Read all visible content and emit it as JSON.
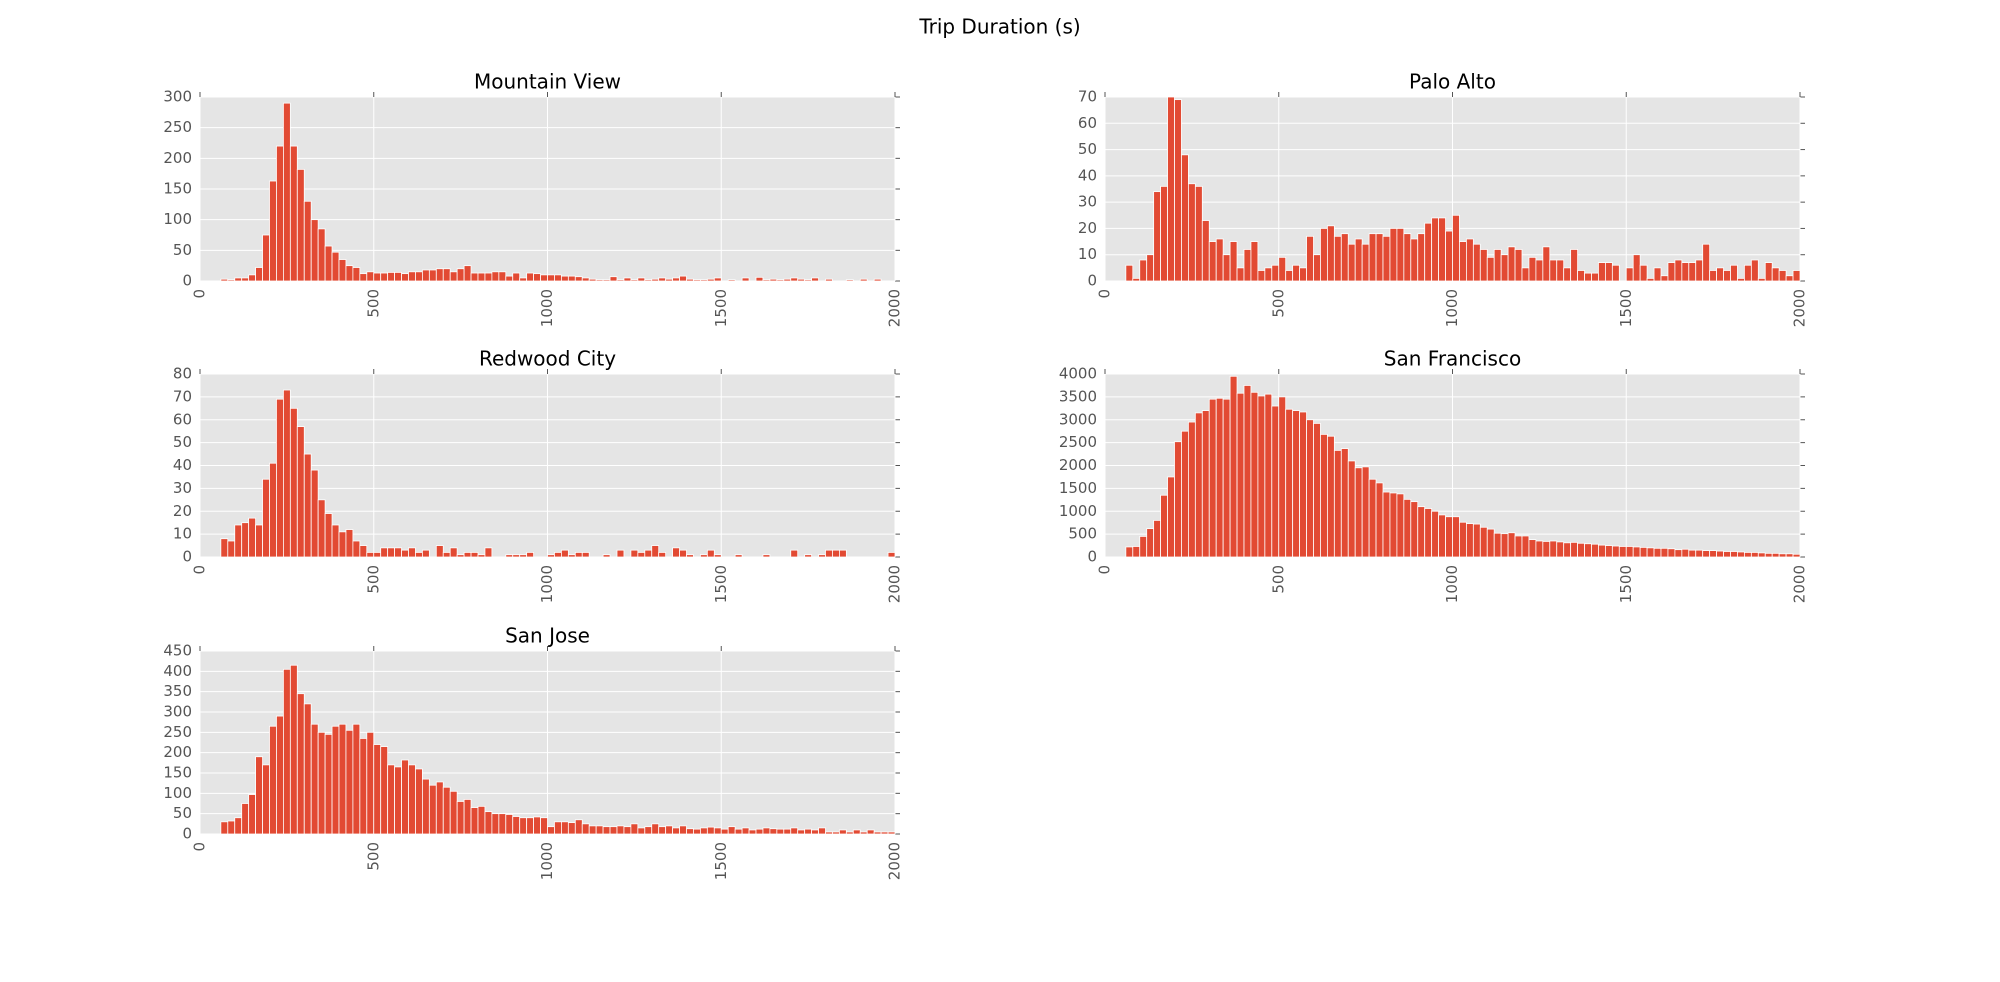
{
  "title": "Trip Duration (s)",
  "chart_data": [
    {
      "type": "histogram",
      "title": "Mountain View",
      "color": "#e24a33",
      "grid": true,
      "bins": [
        0,
        20,
        40,
        60,
        80,
        100,
        120,
        140,
        160,
        180,
        200,
        220,
        240,
        260,
        280,
        300,
        320,
        340,
        360,
        380,
        400,
        420,
        440,
        460,
        480,
        500,
        520,
        540,
        560,
        580,
        600,
        620,
        640,
        660,
        680,
        700,
        720,
        740,
        760,
        780,
        800,
        820,
        840,
        860,
        880,
        900,
        920,
        940,
        960,
        980,
        1000,
        1020,
        1040,
        1060,
        1080,
        1100,
        1120,
        1140,
        1160,
        1180,
        1200,
        1220,
        1240,
        1260,
        1280,
        1300,
        1320,
        1340,
        1360,
        1380,
        1400,
        1420,
        1440,
        1460,
        1480,
        1500,
        1520,
        1540,
        1560,
        1580,
        1600,
        1620,
        1640,
        1660,
        1680,
        1700,
        1720,
        1740,
        1760,
        1780,
        1800,
        1820,
        1840,
        1860,
        1880,
        1900,
        1920,
        1940,
        1960,
        1980,
        2000
      ],
      "values": [
        0,
        0,
        0,
        3,
        2,
        5,
        5,
        10,
        22,
        75,
        163,
        220,
        290,
        220,
        182,
        130,
        100,
        85,
        57,
        47,
        35,
        25,
        22,
        12,
        15,
        13,
        13,
        14,
        14,
        12,
        15,
        15,
        18,
        18,
        20,
        20,
        15,
        20,
        25,
        13,
        13,
        13,
        15,
        15,
        8,
        13,
        5,
        13,
        12,
        10,
        10,
        10,
        8,
        8,
        7,
        5,
        3,
        2,
        2,
        7,
        2,
        5,
        2,
        5,
        2,
        3,
        5,
        3,
        5,
        8,
        3,
        2,
        2,
        3,
        5,
        0,
        2,
        0,
        5,
        0,
        6,
        2,
        3,
        2,
        3,
        5,
        3,
        2,
        5,
        0,
        3,
        0,
        0,
        2,
        0,
        3,
        0,
        3,
        0,
        0
      ],
      "xlim": [
        0,
        2000
      ],
      "xticks": [
        0,
        500,
        1000,
        1500,
        2000
      ],
      "ylim": [
        0,
        300
      ],
      "yticks": [
        0,
        50,
        100,
        150,
        200,
        250,
        300
      ]
    },
    {
      "type": "histogram",
      "title": "Palo Alto",
      "color": "#e24a33",
      "grid": true,
      "bins": [
        0,
        20,
        40,
        60,
        80,
        100,
        120,
        140,
        160,
        180,
        200,
        220,
        240,
        260,
        280,
        300,
        320,
        340,
        360,
        380,
        400,
        420,
        440,
        460,
        480,
        500,
        520,
        540,
        560,
        580,
        600,
        620,
        640,
        660,
        680,
        700,
        720,
        740,
        760,
        780,
        800,
        820,
        840,
        860,
        880,
        900,
        920,
        940,
        960,
        980,
        1000,
        1020,
        1040,
        1060,
        1080,
        1100,
        1120,
        1140,
        1160,
        1180,
        1200,
        1220,
        1240,
        1260,
        1280,
        1300,
        1320,
        1340,
        1360,
        1380,
        1400,
        1420,
        1440,
        1460,
        1480,
        1500,
        1520,
        1540,
        1560,
        1580,
        1600,
        1620,
        1640,
        1660,
        1680,
        1700,
        1720,
        1740,
        1760,
        1780,
        1800,
        1820,
        1840,
        1860,
        1880,
        1900,
        1920,
        1940,
        1960,
        1980,
        2000
      ],
      "values": [
        0,
        0,
        0,
        6,
        1,
        8,
        10,
        34,
        36,
        70,
        69,
        48,
        37,
        36,
        23,
        15,
        16,
        10,
        15,
        5,
        12,
        15,
        4,
        5,
        6,
        9,
        4,
        6,
        5,
        17,
        10,
        20,
        21,
        17,
        18,
        14,
        16,
        14,
        18,
        18,
        17,
        20,
        20,
        18,
        16,
        18,
        22,
        24,
        24,
        19,
        25,
        15,
        16,
        14,
        12,
        9,
        12,
        10,
        13,
        12,
        5,
        9,
        8,
        13,
        8,
        8,
        5,
        12,
        4,
        3,
        3,
        7,
        7,
        6,
        0,
        5,
        10,
        6,
        1,
        5,
        2,
        7,
        8,
        7,
        7,
        8,
        14,
        4,
        5,
        4,
        6,
        1,
        6,
        8,
        1,
        7,
        5,
        4,
        2,
        4
      ],
      "xlim": [
        0,
        2000
      ],
      "xticks": [
        0,
        500,
        1000,
        1500,
        2000
      ],
      "ylim": [
        0,
        70
      ],
      "yticks": [
        0,
        10,
        20,
        30,
        40,
        50,
        60,
        70
      ]
    },
    {
      "type": "histogram",
      "title": "Redwood City",
      "color": "#e24a33",
      "grid": true,
      "bins": [
        0,
        20,
        40,
        60,
        80,
        100,
        120,
        140,
        160,
        180,
        200,
        220,
        240,
        260,
        280,
        300,
        320,
        340,
        360,
        380,
        400,
        420,
        440,
        460,
        480,
        500,
        520,
        540,
        560,
        580,
        600,
        620,
        640,
        660,
        680,
        700,
        720,
        740,
        760,
        780,
        800,
        820,
        840,
        860,
        880,
        900,
        920,
        940,
        960,
        980,
        1000,
        1020,
        1040,
        1060,
        1080,
        1100,
        1120,
        1140,
        1160,
        1180,
        1200,
        1220,
        1240,
        1260,
        1280,
        1300,
        1320,
        1340,
        1360,
        1380,
        1400,
        1420,
        1440,
        1460,
        1480,
        1500,
        1520,
        1540,
        1560,
        1580,
        1600,
        1620,
        1640,
        1660,
        1680,
        1700,
        1720,
        1740,
        1760,
        1780,
        1800,
        1820,
        1840,
        1860,
        1880,
        1900,
        1920,
        1940,
        1960,
        1980,
        2000
      ],
      "values": [
        0,
        0,
        0,
        8,
        7,
        14,
        15,
        17,
        14,
        34,
        41,
        69,
        73,
        65,
        57,
        45,
        38,
        25,
        19,
        14,
        11,
        12,
        7,
        5,
        2,
        2,
        4,
        4,
        4,
        3,
        4,
        2,
        3,
        0,
        5,
        2,
        4,
        1,
        2,
        2,
        1,
        4,
        0,
        0,
        1,
        1,
        1,
        2,
        0,
        0,
        1,
        2,
        3,
        1,
        2,
        2,
        0,
        0,
        1,
        0,
        3,
        0,
        3,
        2,
        3,
        5,
        2,
        0,
        4,
        3,
        1,
        0,
        1,
        3,
        1,
        0,
        0,
        1,
        0,
        0,
        0,
        1,
        0,
        0,
        0,
        3,
        0,
        1,
        0,
        1,
        3,
        3,
        3,
        0,
        0,
        0,
        0,
        0,
        0,
        2
      ],
      "xlim": [
        0,
        2000
      ],
      "xticks": [
        0,
        500,
        1000,
        1500,
        2000
      ],
      "ylim": [
        0,
        80
      ],
      "yticks": [
        0,
        10,
        20,
        30,
        40,
        50,
        60,
        70,
        80
      ]
    },
    {
      "type": "histogram",
      "title": "San Francisco",
      "color": "#e24a33",
      "grid": true,
      "bins": [
        0,
        20,
        40,
        60,
        80,
        100,
        120,
        140,
        160,
        180,
        200,
        220,
        240,
        260,
        280,
        300,
        320,
        340,
        360,
        380,
        400,
        420,
        440,
        460,
        480,
        500,
        520,
        540,
        560,
        580,
        600,
        620,
        640,
        660,
        680,
        700,
        720,
        740,
        760,
        780,
        800,
        820,
        840,
        860,
        880,
        900,
        920,
        940,
        960,
        980,
        1000,
        1020,
        1040,
        1060,
        1080,
        1100,
        1120,
        1140,
        1160,
        1180,
        1200,
        1220,
        1240,
        1260,
        1280,
        1300,
        1320,
        1340,
        1360,
        1380,
        1400,
        1420,
        1440,
        1460,
        1480,
        1500,
        1520,
        1540,
        1560,
        1580,
        1600,
        1620,
        1640,
        1660,
        1680,
        1700,
        1720,
        1740,
        1760,
        1780,
        1800,
        1820,
        1840,
        1860,
        1880,
        1900,
        1920,
        1940,
        1960,
        1980,
        2000
      ],
      "values": [
        0,
        0,
        0,
        220,
        230,
        450,
        620,
        800,
        1350,
        1750,
        2520,
        2750,
        2950,
        3150,
        3200,
        3450,
        3470,
        3450,
        3950,
        3580,
        3750,
        3600,
        3520,
        3560,
        3300,
        3500,
        3230,
        3200,
        3170,
        3000,
        2920,
        2680,
        2640,
        2330,
        2370,
        2100,
        1950,
        1970,
        1700,
        1620,
        1420,
        1400,
        1380,
        1260,
        1210,
        1100,
        1060,
        1000,
        920,
        880,
        880,
        760,
        730,
        720,
        650,
        610,
        520,
        510,
        530,
        460,
        460,
        380,
        350,
        340,
        350,
        330,
        310,
        320,
        300,
        290,
        280,
        260,
        250,
        240,
        230,
        230,
        220,
        210,
        200,
        190,
        190,
        180,
        160,
        170,
        150,
        150,
        140,
        140,
        130,
        120,
        120,
        110,
        100,
        100,
        90,
        80,
        80,
        70,
        70,
        60
      ],
      "xlim": [
        0,
        2000
      ],
      "xticks": [
        0,
        500,
        1000,
        1500,
        2000
      ],
      "ylim": [
        0,
        4000
      ],
      "yticks": [
        0,
        500,
        1000,
        1500,
        2000,
        2500,
        3000,
        3500,
        4000
      ]
    },
    {
      "type": "histogram",
      "title": "San Jose",
      "color": "#e24a33",
      "grid": true,
      "bins": [
        0,
        20,
        40,
        60,
        80,
        100,
        120,
        140,
        160,
        180,
        200,
        220,
        240,
        260,
        280,
        300,
        320,
        340,
        360,
        380,
        400,
        420,
        440,
        460,
        480,
        500,
        520,
        540,
        560,
        580,
        600,
        620,
        640,
        660,
        680,
        700,
        720,
        740,
        760,
        780,
        800,
        820,
        840,
        860,
        880,
        900,
        920,
        940,
        960,
        980,
        1000,
        1020,
        1040,
        1060,
        1080,
        1100,
        1120,
        1140,
        1160,
        1180,
        1200,
        1220,
        1240,
        1260,
        1280,
        1300,
        1320,
        1340,
        1360,
        1380,
        1400,
        1420,
        1440,
        1460,
        1480,
        1500,
        1520,
        1540,
        1560,
        1580,
        1600,
        1620,
        1640,
        1660,
        1680,
        1700,
        1720,
        1740,
        1760,
        1780,
        1800,
        1820,
        1840,
        1860,
        1880,
        1900,
        1920,
        1940,
        1960,
        1980,
        2000
      ],
      "values": [
        0,
        0,
        0,
        30,
        32,
        40,
        75,
        97,
        190,
        170,
        265,
        290,
        405,
        415,
        345,
        320,
        270,
        250,
        245,
        265,
        270,
        255,
        270,
        235,
        250,
        220,
        215,
        170,
        165,
        182,
        170,
        160,
        135,
        120,
        128,
        115,
        105,
        80,
        85,
        65,
        68,
        55,
        50,
        50,
        48,
        43,
        40,
        40,
        42,
        40,
        18,
        30,
        30,
        28,
        35,
        25,
        20,
        20,
        18,
        18,
        20,
        18,
        25,
        15,
        18,
        25,
        18,
        20,
        15,
        20,
        13,
        12,
        15,
        17,
        15,
        12,
        18,
        12,
        15,
        10,
        12,
        15,
        13,
        12,
        12,
        15,
        10,
        12,
        10,
        15,
        5,
        5,
        10,
        5,
        10,
        5,
        10,
        5,
        5,
        5
      ],
      "xlim": [
        0,
        2000
      ],
      "xticks": [
        0,
        500,
        1000,
        1500,
        2000
      ],
      "ylim": [
        0,
        450
      ],
      "yticks": [
        0,
        50,
        100,
        150,
        200,
        250,
        300,
        350,
        400,
        450
      ]
    }
  ]
}
